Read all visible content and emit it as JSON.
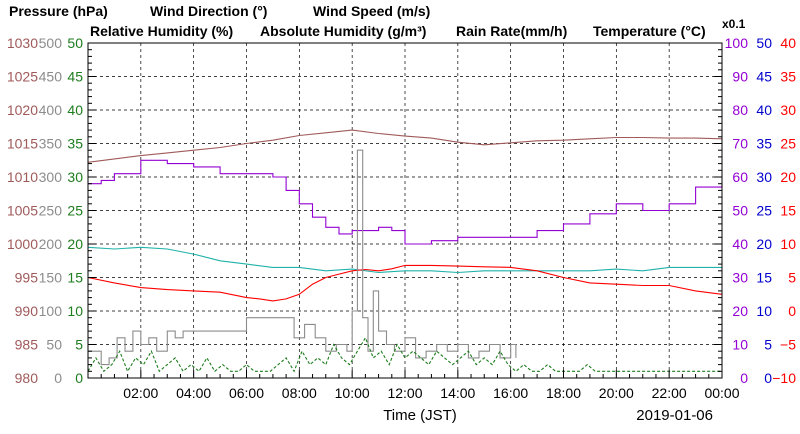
{
  "chart_data": {
    "type": "line",
    "date": "2019-01-06",
    "xlabel": "Time (JST)",
    "x_ticks": [
      "02:00",
      "04:00",
      "06:00",
      "08:00",
      "10:00",
      "12:00",
      "14:00",
      "16:00",
      "18:00",
      "20:00",
      "22:00",
      "00:00"
    ],
    "x_hours": [
      2,
      4,
      6,
      8,
      10,
      12,
      14,
      16,
      18,
      20,
      22,
      24
    ],
    "x_range": [
      0,
      24
    ],
    "grid": true,
    "legend": [
      {
        "text": "Pressure (hPa)",
        "color": "#a05a5a"
      },
      {
        "text": "Wind Direction (°)",
        "color": "#8c8c8c"
      },
      {
        "text": "Wind Speed (m/s)",
        "color": "#1e7d1e"
      },
      {
        "text": "Relative Humidity (%)",
        "color": "#9400d3"
      },
      {
        "text": "Absolute Humidity (g/m³)",
        "color": "#20b2aa"
      },
      {
        "text": "Rain Rate(mm/h)",
        "color": "#0000cd"
      },
      {
        "text": "Temperature (°C)",
        "color": "#ff0000"
      },
      {
        "text": "x0.1",
        "color": "#20b2aa"
      }
    ],
    "axes": [
      {
        "name": "Pressure (hPa)",
        "side": "left",
        "color": "#a05a5a",
        "range": [
          980,
          1030
        ],
        "ticks": [
          "980",
          "985",
          "990",
          "995",
          "1000",
          "1005",
          "1010",
          "1015",
          "1020",
          "1025",
          "1030"
        ]
      },
      {
        "name": "Wind Direction (°)",
        "side": "left",
        "color": "#8c8c8c",
        "range": [
          0,
          500
        ],
        "ticks": [
          "0",
          "50",
          "100",
          "150",
          "200",
          "250",
          "300",
          "350",
          "400",
          "450",
          "500"
        ]
      },
      {
        "name": "Wind Speed (m/s)",
        "side": "left",
        "color": "#1e7d1e",
        "range": [
          0,
          50
        ],
        "ticks": [
          "0",
          "5",
          "10",
          "15",
          "20",
          "25",
          "30",
          "35",
          "40",
          "45",
          "50"
        ]
      },
      {
        "name": "Relative Humidity (%)",
        "side": "right",
        "color": "#9400d3",
        "range": [
          0,
          100
        ],
        "ticks": [
          "0",
          "10",
          "20",
          "30",
          "40",
          "50",
          "60",
          "70",
          "80",
          "90",
          "100"
        ]
      },
      {
        "name": "Rain Rate(mm/h)",
        "side": "right",
        "color": "#0000cd",
        "range": [
          0,
          50
        ],
        "ticks": [
          "0",
          "5",
          "10",
          "15",
          "20",
          "25",
          "30",
          "35",
          "40",
          "45",
          "50"
        ]
      },
      {
        "name": "Temperature (°C)",
        "side": "right",
        "color": "#ff0000",
        "range": [
          -10,
          40
        ],
        "ticks": [
          "−10",
          "−5",
          "0",
          "5",
          "10",
          "15",
          "20",
          "25",
          "30",
          "35",
          "40"
        ]
      }
    ],
    "series": [
      {
        "name": "Pressure (hPa)",
        "color": "#a05a5a",
        "axis": 0,
        "x": [
          0,
          1,
          2,
          3,
          4,
          5,
          6,
          7,
          8,
          9,
          10,
          11,
          12,
          13,
          14,
          15,
          16,
          17,
          18,
          19,
          20,
          21,
          22,
          23,
          24
        ],
        "y": [
          1012.2,
          1012.7,
          1013.2,
          1013.6,
          1014.0,
          1014.4,
          1015.0,
          1015.5,
          1016.2,
          1016.6,
          1017.0,
          1016.5,
          1016.1,
          1015.8,
          1015.2,
          1014.8,
          1015.1,
          1015.4,
          1015.5,
          1015.7,
          1015.9,
          1015.9,
          1015.8,
          1015.8,
          1015.7
        ]
      },
      {
        "name": "Relative Humidity (%)",
        "color": "#9400d3",
        "axis": 3,
        "x": [
          0,
          0.5,
          1,
          2,
          2.5,
          3,
          4,
          5,
          6,
          7,
          7.5,
          8,
          8.5,
          9,
          9.5,
          10,
          11,
          11.5,
          12,
          12.5,
          13,
          14,
          15,
          16,
          17,
          18,
          19,
          20,
          21,
          22,
          23,
          24
        ],
        "y": [
          58,
          59,
          61,
          65,
          65,
          64,
          63,
          61,
          61,
          60,
          56,
          52,
          48,
          45,
          43,
          44,
          45,
          44,
          40,
          40,
          41,
          42,
          42,
          42,
          44,
          46,
          49,
          52,
          50,
          52,
          57,
          58
        ]
      },
      {
        "name": "Absolute Humidity (g/m³)",
        "color": "#20b2aa",
        "axis": 3,
        "x": [
          0,
          1,
          2,
          3,
          4,
          5,
          6,
          7,
          8,
          9,
          10,
          11,
          12,
          13,
          14,
          15,
          16,
          17,
          18,
          19,
          20,
          21,
          22,
          23,
          24
        ],
        "y": [
          39,
          38.5,
          39,
          38.5,
          37,
          35,
          34,
          33,
          33,
          32,
          32.5,
          31.5,
          32,
          32,
          31.5,
          32,
          32,
          32,
          32,
          32,
          32.5,
          32,
          33,
          33,
          33
        ]
      },
      {
        "name": "Temperature (°C)",
        "color": "#ff0000",
        "axis": 5,
        "x": [
          0,
          1,
          2,
          3,
          4,
          5,
          6,
          6.5,
          7,
          7.5,
          8,
          8.5,
          9,
          9.5,
          10,
          10.5,
          11,
          11.5,
          12,
          13,
          14,
          15,
          16,
          17,
          18,
          19,
          20,
          21,
          22,
          23,
          24
        ],
        "y": [
          5,
          4.2,
          3.5,
          3.2,
          3,
          2.8,
          2,
          1.8,
          1.5,
          1.8,
          2.5,
          4,
          5,
          5.5,
          6,
          6.2,
          6,
          6.3,
          6.8,
          6.8,
          6.7,
          6.6,
          6.5,
          6,
          5,
          4.2,
          4,
          3.8,
          3.8,
          3,
          2.5
        ]
      },
      {
        "name": "Wind Direction (°)",
        "color": "#8c8c8c",
        "axis": 1,
        "x": [
          0,
          0.5,
          0.8,
          1.1,
          1.4,
          1.7,
          2,
          2.3,
          2.6,
          3,
          3.3,
          3.6,
          4,
          4.5,
          5,
          5.5,
          6,
          6.5,
          7,
          7.5,
          7.8,
          8.2,
          8.6,
          9,
          9.4,
          9.8,
          10,
          10.2,
          10.4,
          10.6,
          10.8,
          11,
          11.3,
          11.6,
          12,
          12.4,
          12.8,
          13.2,
          13.6,
          14,
          14.4,
          14.8,
          15.2,
          15.6,
          16,
          16.2
        ],
        "y": [
          40,
          20,
          30,
          60,
          40,
          70,
          50,
          60,
          40,
          70,
          60,
          70,
          70,
          70,
          70,
          70,
          90,
          90,
          90,
          90,
          60,
          80,
          60,
          40,
          50,
          40,
          100,
          340,
          90,
          40,
          130,
          70,
          50,
          40,
          60,
          30,
          40,
          50,
          40,
          50,
          30,
          40,
          50,
          30,
          50,
          30
        ]
      },
      {
        "name": "Wind Speed (m/s)",
        "color": "#1e7d1e",
        "axis": 2,
        "x": [
          0,
          0.3,
          0.6,
          0.9,
          1.2,
          1.5,
          1.8,
          2.1,
          2.4,
          2.7,
          3,
          3.3,
          3.6,
          3.9,
          4.2,
          4.5,
          4.8,
          5.1,
          5.4,
          5.7,
          6,
          6.3,
          6.6,
          6.9,
          7.2,
          7.5,
          7.8,
          8.1,
          8.4,
          8.7,
          9,
          9.3,
          9.6,
          9.9,
          10.2,
          10.5,
          10.8,
          11.1,
          11.4,
          11.7,
          12,
          12.3,
          12.6,
          12.9,
          13.2,
          13.5,
          13.8,
          14.1,
          14.4,
          14.7,
          15,
          15.3,
          15.6,
          15.9,
          16.2,
          16.5,
          16.8,
          17.1,
          17.4,
          17.7,
          18,
          18.3,
          18.6,
          18.9,
          19.2,
          19.5,
          19.8,
          20.1,
          20.4,
          20.7,
          21,
          21.3,
          21.6,
          21.9,
          22.2,
          22.5,
          22.8,
          23.1,
          23.4,
          23.7,
          24
        ],
        "y": [
          1,
          3,
          1,
          2,
          4,
          1,
          3,
          2,
          4,
          1,
          2,
          3,
          1,
          2,
          1,
          3,
          1,
          2,
          1,
          1,
          2,
          1,
          1,
          1,
          2,
          3,
          1,
          4,
          2,
          3,
          2,
          5,
          3,
          2,
          4,
          6,
          3,
          4,
          2,
          5,
          3,
          4,
          3,
          2,
          4,
          3,
          2,
          3,
          4,
          2,
          3,
          2,
          4,
          2,
          1,
          2,
          1,
          1,
          2,
          1,
          1,
          1,
          1,
          2,
          1,
          1,
          1,
          1,
          1,
          1,
          1,
          1,
          1,
          1,
          1,
          1,
          1,
          1,
          1,
          1,
          1
        ]
      }
    ]
  }
}
